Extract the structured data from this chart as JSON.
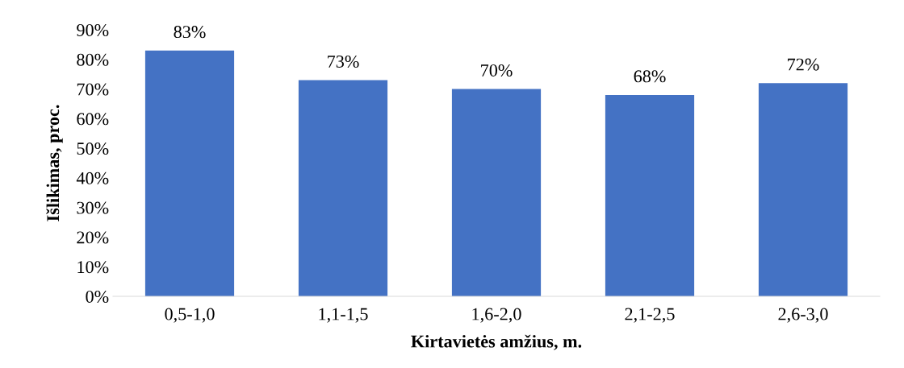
{
  "chart_data": {
    "type": "bar",
    "xlabel": "Kirtavietės amžius, m.",
    "ylabel": "Išlikimas, proc.",
    "categories": [
      "0,5-1,0",
      "1,1-1,5",
      "1,6-2,0",
      "2,1-2,5",
      "2,6-3,0"
    ],
    "values": [
      83,
      73,
      70,
      68,
      72
    ],
    "value_labels": [
      "83%",
      "73%",
      "70%",
      "68%",
      "72%"
    ],
    "color": "#4472c4",
    "ylim": [
      0,
      90
    ],
    "yticks": [
      {
        "value": 0,
        "label": "0%"
      },
      {
        "value": 10,
        "label": "10%"
      },
      {
        "value": 20,
        "label": "20%"
      },
      {
        "value": 30,
        "label": "30%"
      },
      {
        "value": 40,
        "label": "40%"
      },
      {
        "value": 50,
        "label": "50%"
      },
      {
        "value": 60,
        "label": "60%"
      },
      {
        "value": 70,
        "label": "70%"
      },
      {
        "value": 80,
        "label": "80%"
      },
      {
        "value": 90,
        "label": "90%"
      }
    ],
    "grid": false
  }
}
